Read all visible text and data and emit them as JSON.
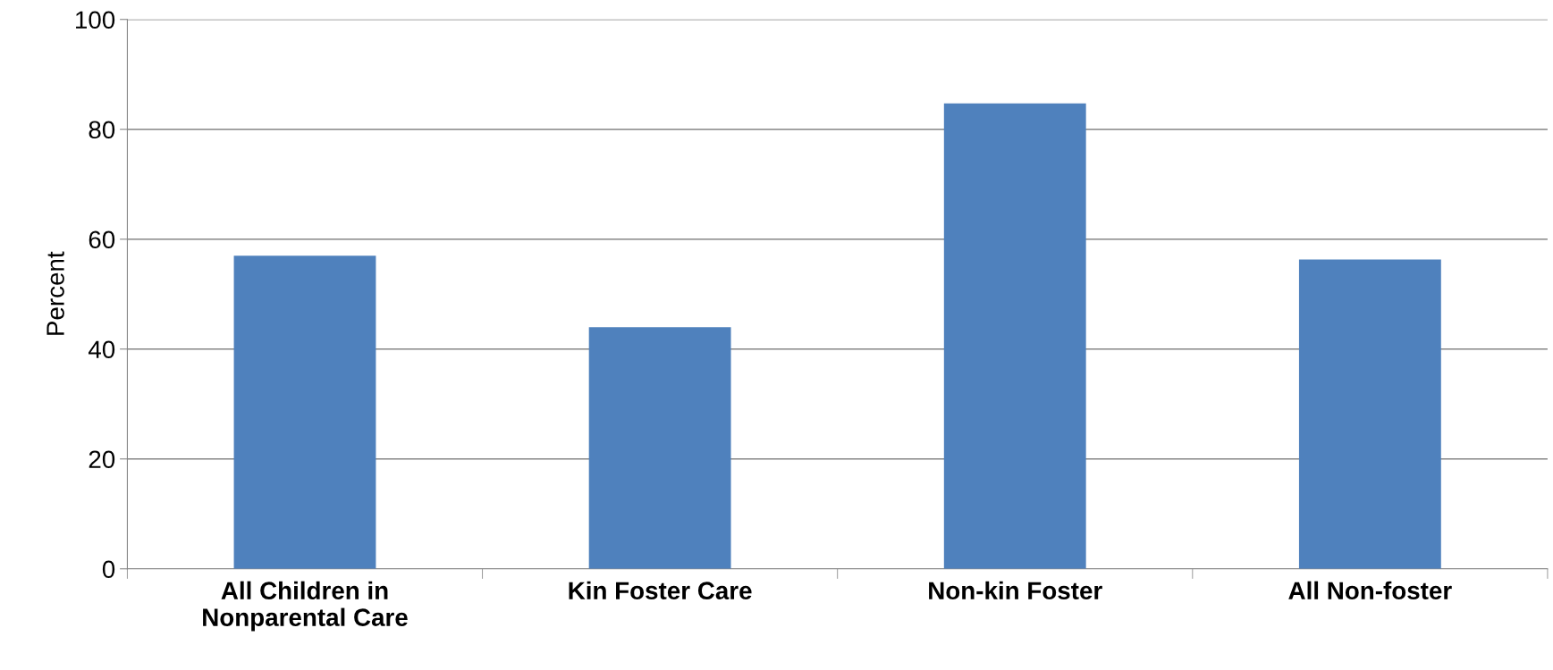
{
  "chart_data": {
    "type": "bar",
    "ylabel": "Percent",
    "categories": [
      "All Children in\nNonparental Care",
      "Kin Foster Care",
      "Non-kin Foster",
      "All Non-foster"
    ],
    "values": [
      57,
      44,
      84.7,
      56.3
    ],
    "color": "#4f81bd",
    "ylim": [
      0,
      100
    ],
    "yticks": [
      0,
      20,
      40,
      60,
      80,
      100
    ],
    "grid": "y",
    "legend": false
  }
}
